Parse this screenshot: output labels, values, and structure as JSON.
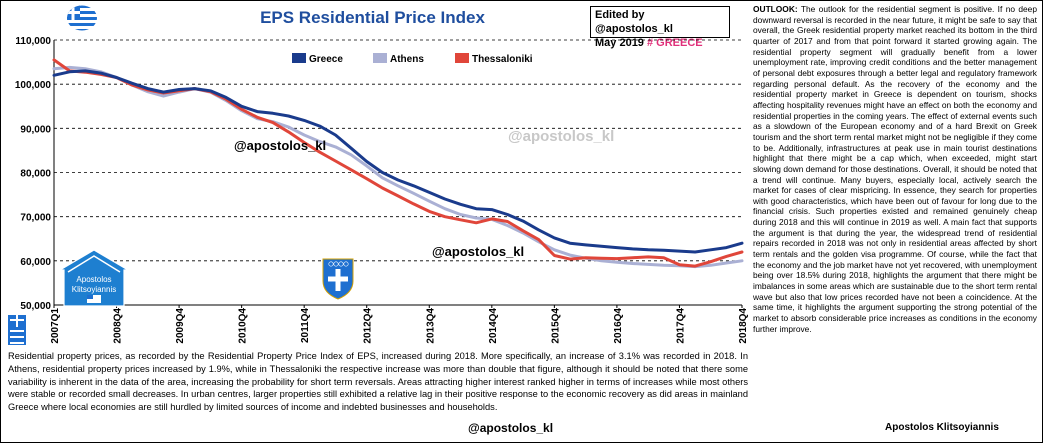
{
  "header": {
    "title": "EPS Residential Price Index",
    "edited_line1": "Edited by  @apostolos_kl",
    "edited_line2_prefix": "May 2019",
    "edited_line2_tag": "# GREECE"
  },
  "colors": {
    "greece": "#1a3b8c",
    "athens": "#aab0d4",
    "thessaloniki": "#e0463a",
    "title": "#1f4e9e",
    "logo": "#1e7fd0"
  },
  "watermarks": {
    "chart_handle_1": "@apostolos_kl",
    "chart_handle_2": "@apostolos_kl",
    "chart_handle_ghost": "@apostolos_kl",
    "bottom_handle": "@apostolos_kl"
  },
  "logo": {
    "line1": "Apostolos",
    "line2": "Klitsoyiannis"
  },
  "chart_data": {
    "type": "line",
    "title": "EPS Residential Price Index",
    "ylim": [
      50000,
      110000
    ],
    "yticks": [
      "50,000",
      "60,000",
      "70,000",
      "80,000",
      "90,000",
      "100,000",
      "110,000"
    ],
    "ytick_values": [
      50000,
      60000,
      70000,
      80000,
      90000,
      100000,
      110000
    ],
    "xticks": [
      "2007Q1",
      "2008Q4",
      "2009Q4",
      "2010Q4",
      "2011Q4",
      "2012Q4",
      "2013Q4",
      "2014Q4",
      "2015Q4",
      "2016Q4",
      "2017Q4",
      "2018Q4"
    ],
    "grid": "horizontal dashed",
    "legend_position": "top-center",
    "series": [
      {
        "name": "Greece",
        "values": [
          102000,
          102800,
          103000,
          102500,
          101500,
          100200,
          99000,
          98200,
          98800,
          99000,
          98500,
          97000,
          95000,
          93800,
          93400,
          92800,
          91800,
          90500,
          88500,
          85500,
          82500,
          80000,
          78300,
          77000,
          75500,
          74000,
          72800,
          71800,
          71600,
          70500,
          69000,
          67000,
          65200,
          64000,
          63600,
          63300,
          63000,
          62700,
          62500,
          62400,
          62200,
          62000,
          62500,
          63000,
          64000
        ]
      },
      {
        "name": "Athens",
        "values": [
          103500,
          103800,
          103500,
          102800,
          101500,
          99800,
          98300,
          97300,
          98200,
          99000,
          98200,
          96300,
          94000,
          92200,
          91500,
          90300,
          88500,
          87000,
          85800,
          84000,
          81500,
          78800,
          77000,
          75300,
          73500,
          71800,
          70500,
          69700,
          69400,
          68000,
          66300,
          64300,
          62500,
          61300,
          60600,
          60000,
          59700,
          59400,
          59200,
          59000,
          58900,
          58700,
          59000,
          59500,
          60000
        ]
      },
      {
        "name": "Thessaloniki",
        "values": [
          105500,
          103000,
          102700,
          102200,
          101500,
          99800,
          98700,
          98000,
          98500,
          99000,
          98300,
          96600,
          94300,
          92500,
          91300,
          89200,
          86800,
          84600,
          82600,
          80600,
          78600,
          76500,
          74700,
          72900,
          71200,
          70000,
          69300,
          68600,
          69500,
          68900,
          66800,
          64800,
          61200,
          60400,
          60700,
          60600,
          60500,
          60700,
          60900,
          60700,
          59100,
          58800,
          59800,
          61000,
          62000
        ]
      }
    ]
  },
  "outlook": {
    "label": "OUTLOOK:",
    "text": "The outlook for the residential segment is positive. If no deep downward reversal is recorded in the near future, it might be safe to say that overall, the Greek residential property market reached its bottom in the third quarter of 2017 and from that point forward it started growing again. The residential property segment will gradually benefit from a lower unemployment rate, improving credit conditions and the better management of personal debt exposures through a better legal and regulatory framework regarding personal default. As the recovery of the economy and the residential property market in Greece is dependent on tourism, shocks affecting hospitality revenues might have an effect on both the economy and residential properties in the coming years. The effect of external events such as a slowdown of the European economy and of a hard Brexit on Greek tourism and the short term rental market might not be negligible if they come to be. Additionally, infrastructures at peak use in main tourist destinations highlight that there might be a cap which, when exceeded, might start slowing down demand for those destinations. Overall, it should be noted that a trend will continue. Many buyers, especially local, actively search the market for cases of clear mispricing. In essence, they search for properties with good characteristics, which have been out of favour for long due to the financial crisis. Such properties existed and remained genuinely cheap during 2018 and this will continue in 2019 as well. A main fact that supports the argument is that during the year, the widespread trend of residential repairs recorded in 2018 was not only in residential areas affected by short term rentals and the golden visa programme. Of course, while the fact that the economy and the job market have not yet recovered, with unemployment being over 18.5% during 2018, highlights the argument that there might be imbalances in some areas which are sustainable due to the short term rental wave but also that low prices recorded have not been a coincidence. At the same time, it highlights the argument supporting the strong potential of the market to absorb considerable price increases as conditions in the economy further improve."
  },
  "author": "Apostolos Klitsoyiannis",
  "footer": {
    "text": "Residential property prices, as recorded by the Residential Property Price Index of EPS, increased during 2018. More specifically, an increase of 3.1% was recorded in 2018. In Athens, residential property prices increased by 1.9%, while in Thessaloniki the respective increase was more than double that figure, although it should be noted that there some variability is inherent in the data of the area, increasing the probability for short term reversals. Areas attracting higher interest ranked higher in terms of increases while most others were stable or recorded small decreases. In urban centres, larger properties still exhibited a relative lag in their positive response to the economic recovery as did areas in mainland Greece where local economies are still hurdled by limited sources of income and indebted businesses and households."
  }
}
